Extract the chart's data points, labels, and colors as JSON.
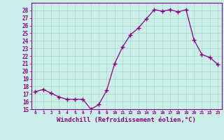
{
  "x": [
    0,
    1,
    2,
    3,
    4,
    5,
    6,
    7,
    8,
    9,
    10,
    11,
    12,
    13,
    14,
    15,
    16,
    17,
    18,
    19,
    20,
    21,
    22,
    23
  ],
  "y": [
    17.3,
    17.6,
    17.1,
    16.6,
    16.3,
    16.3,
    16.3,
    15.0,
    15.6,
    17.5,
    21.0,
    23.2,
    24.8,
    25.7,
    26.9,
    28.1,
    27.9,
    28.1,
    27.8,
    28.1,
    24.1,
    22.2,
    21.8,
    20.9
  ],
  "line_color": "#880088",
  "marker": "+",
  "marker_size": 4,
  "bg_color": "#cceee8",
  "grid_color": "#aaddcc",
  "ylim": [
    15,
    29
  ],
  "yticks": [
    15,
    16,
    17,
    18,
    19,
    20,
    21,
    22,
    23,
    24,
    25,
    26,
    27,
    28
  ],
  "xlabel": "Windchill (Refroidissement éolien,°C)",
  "xlim": [
    -0.5,
    23.5
  ]
}
